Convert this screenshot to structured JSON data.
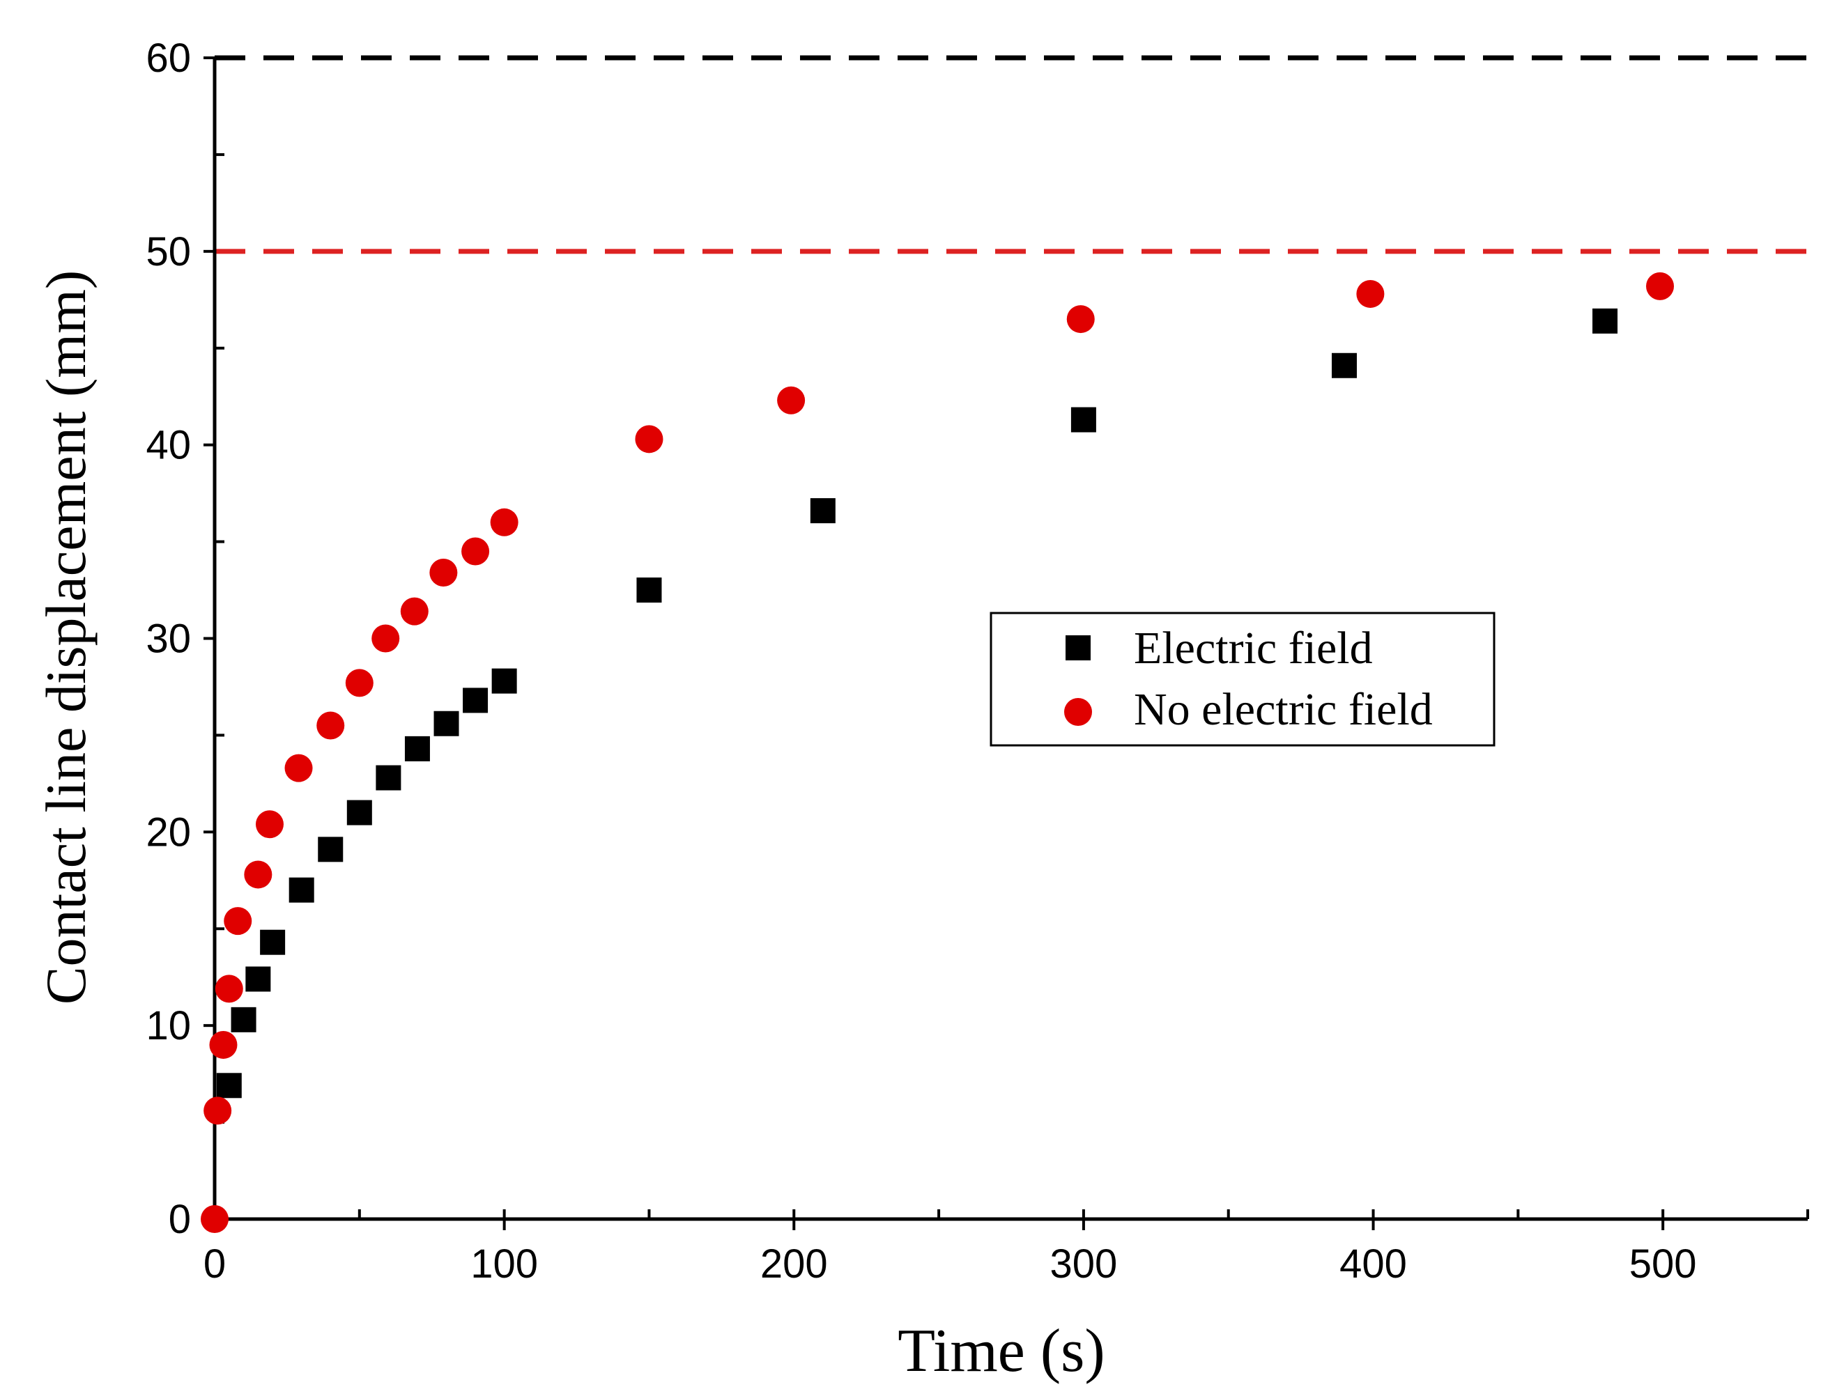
{
  "chart_data": {
    "type": "scatter",
    "title": "",
    "xlabel": "Time (s)",
    "ylabel": "Contact line displacement  (mm)",
    "xlim": [
      0,
      550
    ],
    "ylim": [
      0,
      60
    ],
    "x_ticks": [
      0,
      100,
      200,
      300,
      400,
      500
    ],
    "y_ticks": [
      0,
      10,
      20,
      30,
      40,
      50,
      60
    ],
    "grid": false,
    "legend_position": "center-right",
    "series": [
      {
        "name": "Electric field",
        "marker": "square",
        "color": "#000000",
        "points": [
          [
            5,
            6.9
          ],
          [
            10,
            10.3
          ],
          [
            15,
            12.4
          ],
          [
            20,
            14.3
          ],
          [
            30,
            17.0
          ],
          [
            40,
            19.1
          ],
          [
            50,
            21.0
          ],
          [
            60,
            22.8
          ],
          [
            70,
            24.3
          ],
          [
            80,
            25.6
          ],
          [
            90,
            26.8
          ],
          [
            100,
            27.8
          ],
          [
            150,
            32.5
          ],
          [
            210,
            36.6
          ],
          [
            300,
            41.3
          ],
          [
            390,
            44.1
          ],
          [
            480,
            46.4
          ]
        ]
      },
      {
        "name": "No electric field",
        "marker": "circle",
        "color": "#e00000",
        "points": [
          [
            0,
            0
          ],
          [
            1,
            5.6
          ],
          [
            3,
            9.0
          ],
          [
            5,
            11.9
          ],
          [
            8,
            15.4
          ],
          [
            15,
            17.8
          ],
          [
            19,
            20.4
          ],
          [
            29,
            23.3
          ],
          [
            40,
            25.5
          ],
          [
            50,
            27.7
          ],
          [
            59,
            30.0
          ],
          [
            69,
            31.4
          ],
          [
            79,
            33.4
          ],
          [
            90,
            34.5
          ],
          [
            100,
            36.0
          ],
          [
            150,
            40.3
          ],
          [
            199,
            42.3
          ],
          [
            299,
            46.5
          ],
          [
            399,
            47.8
          ],
          [
            499,
            48.2
          ]
        ]
      }
    ],
    "reference_lines": [
      {
        "y": 60,
        "color": "#000000",
        "style": "dashed"
      },
      {
        "y": 50,
        "color": "#dd2222",
        "style": "dashed"
      }
    ]
  }
}
